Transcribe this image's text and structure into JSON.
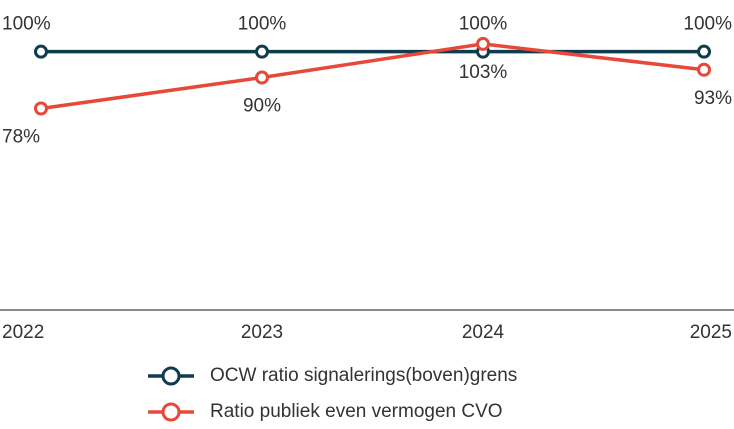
{
  "chart_data": {
    "type": "line",
    "categories": [
      "2022",
      "2023",
      "2024",
      "2025"
    ],
    "series": [
      {
        "name": "OCW ratio signalerings(boven)grens",
        "color": "#0f3d4e",
        "values": [
          100,
          100,
          100,
          100
        ],
        "value_labels": [
          "100%",
          "100%",
          "100%",
          "100%"
        ]
      },
      {
        "name": "Ratio publiek even vermogen CVO",
        "color": "#e8483a",
        "values": [
          78,
          90,
          103,
          93
        ],
        "value_labels": [
          "78%",
          "90%",
          "103%",
          "93%"
        ]
      }
    ],
    "ylim": [
      0,
      120
    ],
    "legend": "bottom"
  }
}
